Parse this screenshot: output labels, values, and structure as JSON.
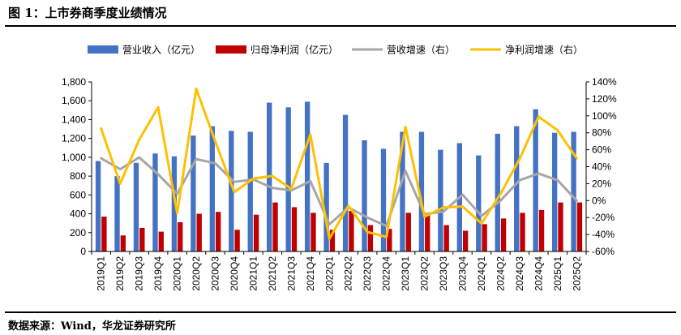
{
  "figure": {
    "title": "图 1：上市券商季度业绩情况",
    "source": "数据来源：Wind，华龙证券研究所"
  },
  "chart_data": {
    "type": "bar",
    "categories": [
      "2019Q1",
      "2019Q2",
      "2019Q3",
      "2019Q4",
      "2020Q1",
      "2020Q2",
      "2020Q3",
      "2020Q4",
      "2021Q1",
      "2021Q2",
      "2021Q3",
      "2021Q4",
      "2022Q1",
      "2022Q2",
      "2022Q3",
      "2022Q4",
      "2023Q1",
      "2023Q2",
      "2023Q3",
      "2023Q4",
      "2024Q1",
      "2024Q2",
      "2024Q3",
      "2024Q4",
      "2025Q1",
      "2025Q2"
    ],
    "y_left": {
      "min": 0,
      "max": 1800,
      "step": 200,
      "ticks": [
        "0",
        "200",
        "400",
        "600",
        "800",
        "1,000",
        "1,200",
        "1,400",
        "1,600",
        "1,800"
      ]
    },
    "y_right": {
      "min": -60,
      "max": 140,
      "step": 20,
      "ticks": [
        "-60%",
        "-40%",
        "-20%",
        "0%",
        "20%",
        "40%",
        "60%",
        "80%",
        "100%",
        "120%",
        "140%"
      ]
    },
    "series": [
      {
        "name": "营业收入（亿元）",
        "type": "bar",
        "axis": "left",
        "color": "#4472C4",
        "values": [
          960,
          800,
          940,
          1040,
          1010,
          1230,
          1330,
          1280,
          1270,
          1580,
          1530,
          1590,
          940,
          1450,
          1180,
          1090,
          1270,
          1270,
          1080,
          1150,
          1020,
          1250,
          1330,
          1510,
          1260,
          1270
        ]
      },
      {
        "name": "归母净利润（亿元）",
        "type": "bar",
        "axis": "left",
        "color": "#C00000",
        "values": [
          370,
          170,
          250,
          210,
          310,
          400,
          420,
          230,
          390,
          520,
          470,
          410,
          230,
          430,
          280,
          240,
          410,
          390,
          280,
          220,
          290,
          350,
          410,
          440,
          520,
          520
        ]
      },
      {
        "name": "营收增速（右）",
        "type": "line",
        "axis": "right",
        "color": "#A6A6A6",
        "values": [
          50,
          37,
          51,
          31,
          8,
          49,
          44,
          22,
          25,
          15,
          12,
          23,
          -28,
          -8,
          -20,
          -30,
          35,
          -16,
          -13,
          7,
          -18,
          0,
          24,
          32,
          24,
          0
        ]
      },
      {
        "name": "净利润增速（右）",
        "type": "line",
        "axis": "right",
        "color": "#FFC000",
        "values": [
          85,
          20,
          72,
          110,
          -15,
          132,
          70,
          10,
          26,
          29,
          14,
          78,
          -45,
          -6,
          -37,
          -43,
          87,
          -19,
          -8,
          -7,
          -27,
          8,
          49,
          99,
          83,
          50
        ]
      }
    ]
  }
}
